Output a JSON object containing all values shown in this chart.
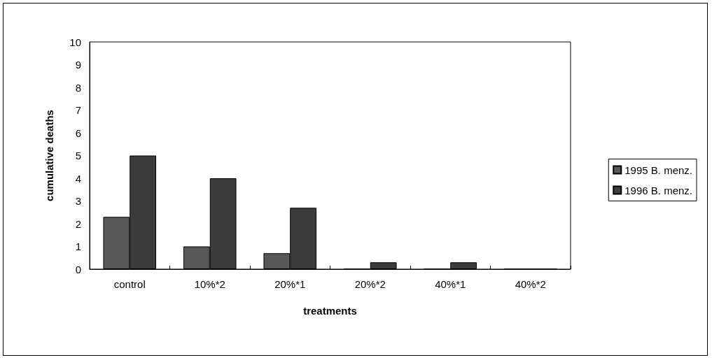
{
  "chart_data": {
    "type": "bar",
    "xlabel": "treatments",
    "ylabel": "cumulative deaths",
    "categories": [
      "control",
      "10%*2",
      "20%*1",
      "20%*2",
      "40%*1",
      "40%*2"
    ],
    "series": [
      {
        "name": "1995 B. menz.",
        "color": "#585858",
        "values": [
          2.3,
          1,
          0.7,
          0,
          0,
          0
        ]
      },
      {
        "name": "1996 B. menz.",
        "color": "#3c3c3c",
        "values": [
          5,
          4,
          2.7,
          0.3,
          0.3,
          0
        ]
      }
    ],
    "ylim": [
      0,
      10
    ],
    "yticks": [
      0,
      1,
      2,
      3,
      4,
      5,
      6,
      7,
      8,
      9,
      10
    ],
    "grid": false,
    "legend": "right"
  }
}
